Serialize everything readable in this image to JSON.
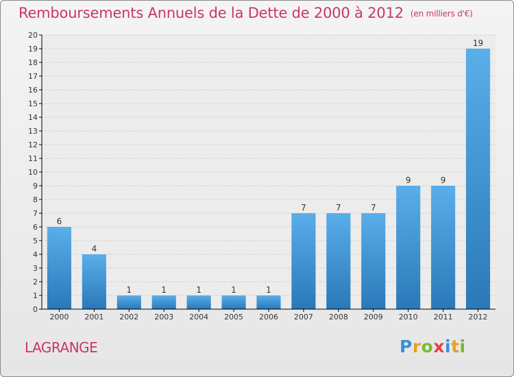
{
  "header": {
    "title": "Remboursements Annuels de la Dette de 2000 à 2012",
    "subtitle": "(en milliers d'€)"
  },
  "footer": {
    "commune": "LAGRANGE",
    "logo_letters": [
      "P",
      "r",
      "o",
      "x",
      "i",
      "t",
      "i"
    ],
    "logo_colors": [
      "#3a8fd8",
      "#e8a020",
      "#7ab830",
      "#e84040",
      "#3a8fd8",
      "#e8a020",
      "#7ab830"
    ]
  },
  "colors": {
    "bar_top": "#5aaeea",
    "bar_bottom": "#2a78b8",
    "grid": "#cfcfcf",
    "axis": "#000000",
    "label": "#333333"
  },
  "chart_data": {
    "type": "bar",
    "title": "Remboursements Annuels de la Dette de 2000 à 2012",
    "categories": [
      "2000",
      "2001",
      "2002",
      "2003",
      "2004",
      "2005",
      "2006",
      "2007",
      "2008",
      "2009",
      "2010",
      "2011",
      "2012"
    ],
    "values": [
      6,
      4,
      1,
      1,
      1,
      1,
      1,
      7,
      7,
      7,
      9,
      9,
      19
    ],
    "ylim": [
      0,
      20
    ],
    "yticks": [
      0,
      1,
      2,
      3,
      4,
      5,
      6,
      7,
      8,
      9,
      10,
      11,
      12,
      13,
      14,
      15,
      16,
      17,
      18,
      19,
      20
    ],
    "grid": true,
    "data_labels": true
  }
}
